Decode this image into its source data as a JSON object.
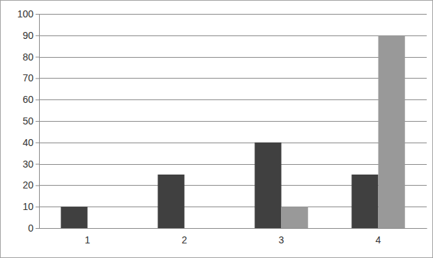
{
  "chart_data": {
    "type": "bar",
    "categories": [
      "1",
      "2",
      "3",
      "4"
    ],
    "series": [
      {
        "color": "#404040",
        "values": [
          10,
          25,
          40,
          25
        ]
      },
      {
        "color": "#999999",
        "values": [
          0,
          0,
          10,
          90
        ]
      }
    ],
    "ylim": [
      0,
      100
    ],
    "yticks": [
      0,
      10,
      20,
      30,
      40,
      50,
      60,
      70,
      80,
      90,
      100
    ],
    "grid": true
  }
}
